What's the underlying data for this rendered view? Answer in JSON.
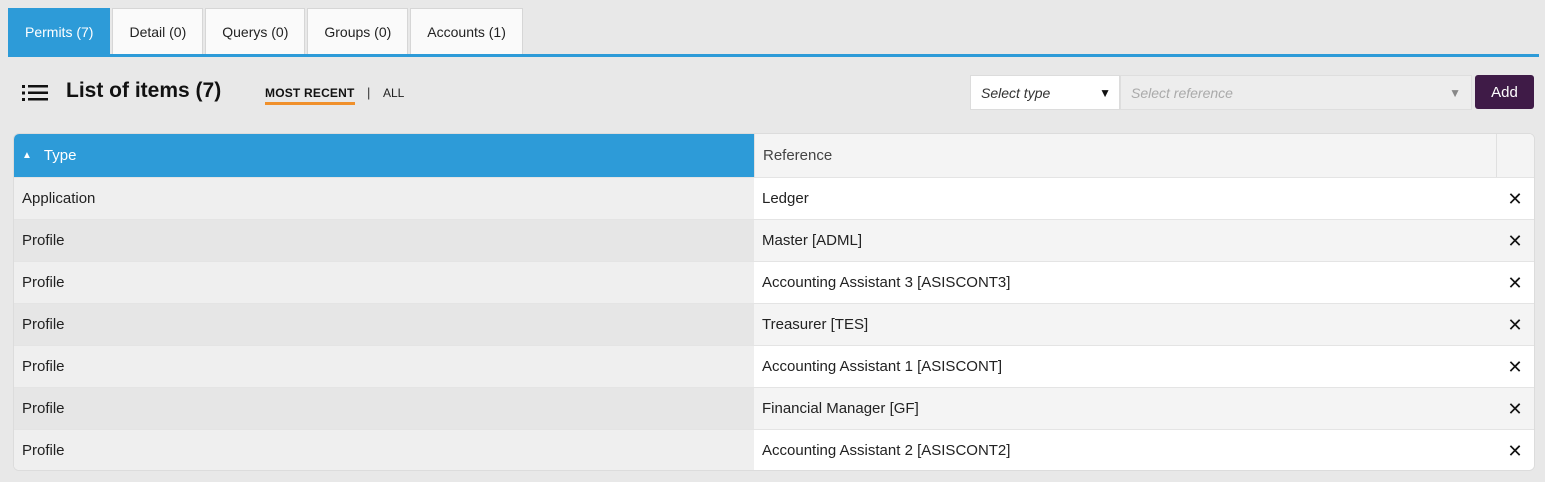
{
  "tabs": [
    {
      "label": "Permits (7)",
      "active": true
    },
    {
      "label": "Detail (0)",
      "active": false
    },
    {
      "label": "Querys (0)",
      "active": false
    },
    {
      "label": "Groups (0)",
      "active": false
    },
    {
      "label": "Accounts (1)",
      "active": false
    }
  ],
  "toolbar": {
    "title": "List of items (7)",
    "icon": "list-icon",
    "filter_recent": "MOST RECENT",
    "filter_separator": "|",
    "filter_all": "ALL",
    "select_type_placeholder": "Select type",
    "select_reference_placeholder": "Select reference",
    "add_label": "Add"
  },
  "table": {
    "columns": [
      "Type",
      "Reference"
    ],
    "sort_indicator": "▲",
    "delete_glyph": "✕",
    "rows": [
      {
        "type": "Application",
        "reference": "Ledger"
      },
      {
        "type": "Profile",
        "reference": "Master [ADML]"
      },
      {
        "type": "Profile",
        "reference": "Accounting Assistant 3 [ASISCONT3]"
      },
      {
        "type": "Profile",
        "reference": "Treasurer [TES]"
      },
      {
        "type": "Profile",
        "reference": "Accounting Assistant 1 [ASISCONT]"
      },
      {
        "type": "Profile",
        "reference": "Financial Manager [GF]"
      },
      {
        "type": "Profile",
        "reference": "Accounting Assistant 2 [ASISCONT2]"
      }
    ]
  },
  "colors": {
    "accent": "#2d9bd8",
    "add_button": "#3f1b47",
    "active_filter_underline": "#f0902b"
  }
}
